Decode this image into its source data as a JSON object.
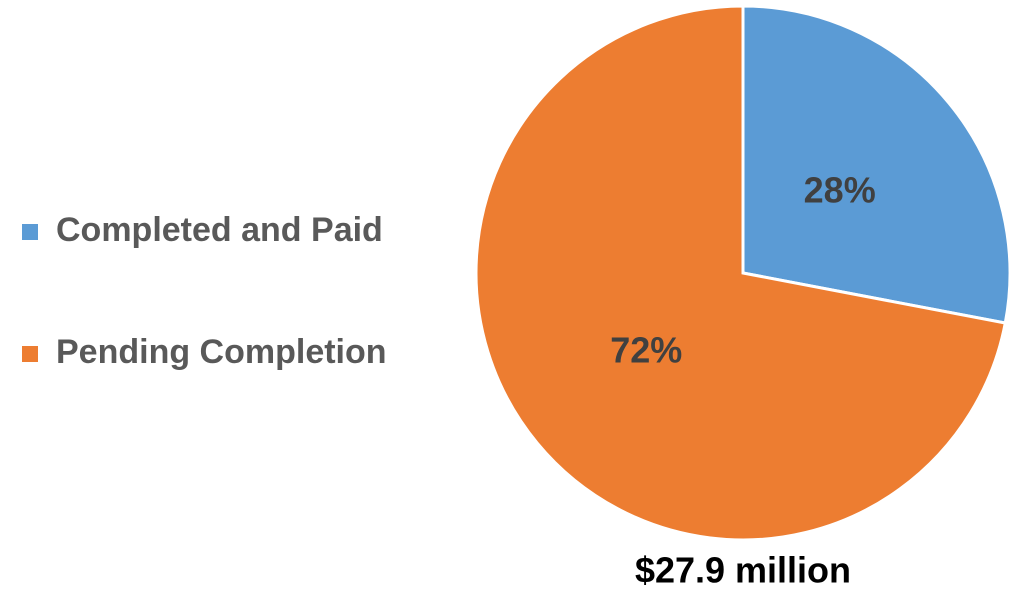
{
  "chart_data": {
    "type": "pie",
    "categories": [
      "Completed and Paid",
      "Pending Completion"
    ],
    "values": [
      28,
      72
    ],
    "value_labels": [
      "28%",
      "72%"
    ],
    "colors": [
      "#5b9bd5",
      "#ed7d31"
    ],
    "annotation": "$27.9 million",
    "legend": "left"
  }
}
